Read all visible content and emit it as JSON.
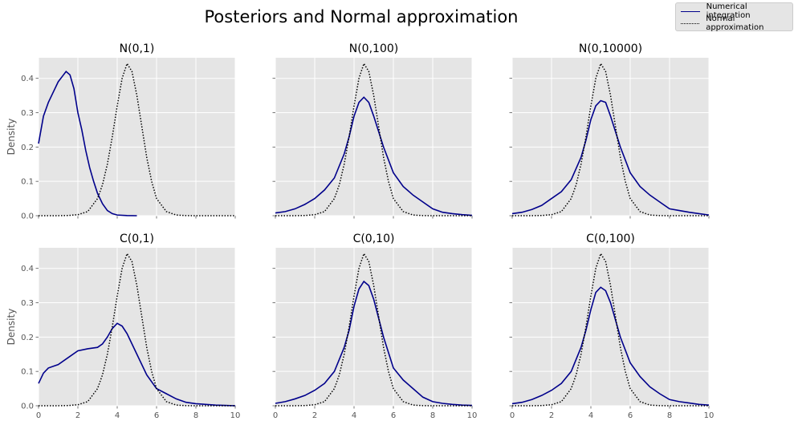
{
  "suptitle": "Posteriors and Normal approximation",
  "legend": {
    "items": [
      {
        "label": "Numerical integration",
        "style": "solid",
        "color": "#00008b"
      },
      {
        "label": "Normal approximation",
        "style": "dotted",
        "color": "#000000"
      }
    ]
  },
  "colors": {
    "panel_bg": "#e5e5e5",
    "grid": "#ffffff",
    "numerical": "#00008b",
    "normal": "#000000"
  },
  "chart_data": [
    {
      "type": "line",
      "title": "N(0,1)",
      "xlabel": "",
      "ylabel": "Density",
      "xlim": [
        0,
        10
      ],
      "ylim": [
        0,
        0.46
      ],
      "xticks": [
        "0",
        "2",
        "4",
        "6",
        "8",
        "10"
      ],
      "yticks": [
        "0.0",
        "0.1",
        "0.2",
        "0.3",
        "0.4"
      ],
      "grid": true,
      "series": [
        {
          "name": "Numerical integration",
          "x": [
            0,
            0.25,
            0.5,
            0.75,
            1.0,
            1.2,
            1.4,
            1.6,
            1.8,
            2.0,
            2.2,
            2.4,
            2.6,
            2.8,
            3.0,
            3.25,
            3.5,
            3.75,
            4.0,
            4.5,
            5.0
          ],
          "y": [
            0.21,
            0.29,
            0.33,
            0.36,
            0.39,
            0.405,
            0.42,
            0.41,
            0.37,
            0.3,
            0.25,
            0.19,
            0.14,
            0.1,
            0.065,
            0.035,
            0.015,
            0.006,
            0.002,
            0.0005,
            0.0
          ]
        },
        {
          "name": "Normal approximation",
          "x": [
            0,
            0.5,
            1,
            1.5,
            2,
            2.5,
            3,
            3.25,
            3.5,
            3.75,
            4,
            4.25,
            4.5,
            4.75,
            5,
            5.25,
            5.5,
            5.75,
            6,
            6.5,
            7,
            7.5,
            8,
            8.5,
            9,
            9.5,
            10
          ],
          "y": [
            0,
            0,
            0.0001,
            0.0006,
            0.003,
            0.012,
            0.05,
            0.09,
            0.15,
            0.23,
            0.32,
            0.4,
            0.443,
            0.42,
            0.35,
            0.26,
            0.17,
            0.1,
            0.05,
            0.012,
            0.002,
            0.0003,
            0,
            0,
            0,
            0,
            0
          ]
        }
      ]
    },
    {
      "type": "line",
      "title": "N(0,100)",
      "xlabel": "",
      "ylabel": "",
      "xlim": [
        0,
        10
      ],
      "ylim": [
        0,
        0.46
      ],
      "xticks": [
        "0",
        "2",
        "4",
        "6",
        "8",
        "10"
      ],
      "yticks": [
        "0.0",
        "0.1",
        "0.2",
        "0.3",
        "0.4"
      ],
      "grid": true,
      "series": [
        {
          "name": "Numerical integration",
          "x": [
            0,
            0.5,
            1,
            1.5,
            2,
            2.5,
            3,
            3.5,
            3.75,
            4,
            4.25,
            4.5,
            4.75,
            5,
            5.5,
            6,
            6.5,
            7,
            7.5,
            8,
            8.5,
            9,
            9.5,
            10
          ],
          "y": [
            0.008,
            0.012,
            0.02,
            0.033,
            0.05,
            0.075,
            0.11,
            0.18,
            0.23,
            0.29,
            0.33,
            0.345,
            0.33,
            0.29,
            0.2,
            0.125,
            0.085,
            0.06,
            0.04,
            0.02,
            0.01,
            0.006,
            0.003,
            0.001
          ]
        },
        {
          "name": "Normal approximation",
          "x": [
            0,
            0.5,
            1,
            1.5,
            2,
            2.5,
            3,
            3.25,
            3.5,
            3.75,
            4,
            4.25,
            4.5,
            4.75,
            5,
            5.25,
            5.5,
            5.75,
            6,
            6.5,
            7,
            7.5,
            8,
            8.5,
            9,
            9.5,
            10
          ],
          "y": [
            0,
            0,
            0.0001,
            0.0006,
            0.003,
            0.012,
            0.05,
            0.09,
            0.15,
            0.23,
            0.32,
            0.4,
            0.443,
            0.42,
            0.35,
            0.26,
            0.17,
            0.1,
            0.05,
            0.012,
            0.002,
            0.0003,
            0,
            0,
            0,
            0,
            0
          ]
        }
      ]
    },
    {
      "type": "line",
      "title": "N(0,10000)",
      "xlabel": "",
      "ylabel": "",
      "xlim": [
        0,
        10
      ],
      "ylim": [
        0,
        0.46
      ],
      "xticks": [
        "0",
        "2",
        "4",
        "6",
        "8",
        "10"
      ],
      "yticks": [
        "0.0",
        "0.1",
        "0.2",
        "0.3",
        "0.4"
      ],
      "grid": true,
      "series": [
        {
          "name": "Numerical integration",
          "x": [
            0,
            0.5,
            1,
            1.5,
            2,
            2.5,
            3,
            3.5,
            3.75,
            4,
            4.25,
            4.5,
            4.75,
            5,
            5.5,
            6,
            6.5,
            7,
            7.5,
            8,
            8.5,
            9,
            9.5,
            10
          ],
          "y": [
            0.006,
            0.01,
            0.018,
            0.03,
            0.05,
            0.07,
            0.105,
            0.17,
            0.22,
            0.28,
            0.32,
            0.335,
            0.33,
            0.29,
            0.2,
            0.125,
            0.085,
            0.06,
            0.04,
            0.02,
            0.015,
            0.01,
            0.006,
            0.002
          ]
        },
        {
          "name": "Normal approximation",
          "x": [
            0,
            0.5,
            1,
            1.5,
            2,
            2.5,
            3,
            3.25,
            3.5,
            3.75,
            4,
            4.25,
            4.5,
            4.75,
            5,
            5.25,
            5.5,
            5.75,
            6,
            6.5,
            7,
            7.5,
            8,
            8.5,
            9,
            9.5,
            10
          ],
          "y": [
            0,
            0,
            0.0001,
            0.0006,
            0.003,
            0.012,
            0.05,
            0.09,
            0.15,
            0.23,
            0.32,
            0.4,
            0.443,
            0.42,
            0.35,
            0.26,
            0.17,
            0.1,
            0.05,
            0.012,
            0.002,
            0.0003,
            0,
            0,
            0,
            0,
            0
          ]
        }
      ]
    },
    {
      "type": "line",
      "title": "C(0,1)",
      "xlabel": "",
      "ylabel": "Density",
      "xlim": [
        0,
        10
      ],
      "ylim": [
        0,
        0.46
      ],
      "xticks": [
        "0",
        "2",
        "4",
        "6",
        "8",
        "10"
      ],
      "yticks": [
        "0.0",
        "0.1",
        "0.2",
        "0.3",
        "0.4"
      ],
      "grid": true,
      "series": [
        {
          "name": "Numerical integration",
          "x": [
            0,
            0.25,
            0.5,
            0.75,
            1.0,
            1.5,
            2,
            2.5,
            3,
            3.25,
            3.5,
            3.75,
            4,
            4.25,
            4.5,
            5,
            5.5,
            6,
            6.5,
            7,
            7.5,
            8,
            8.5,
            9,
            9.5,
            10
          ],
          "y": [
            0.065,
            0.095,
            0.11,
            0.115,
            0.12,
            0.14,
            0.16,
            0.166,
            0.17,
            0.18,
            0.2,
            0.225,
            0.24,
            0.232,
            0.21,
            0.15,
            0.09,
            0.05,
            0.035,
            0.02,
            0.01,
            0.006,
            0.004,
            0.002,
            0.001,
            0.0
          ]
        },
        {
          "name": "Normal approximation",
          "x": [
            0,
            0.5,
            1,
            1.5,
            2,
            2.5,
            3,
            3.25,
            3.5,
            3.75,
            4,
            4.25,
            4.5,
            4.75,
            5,
            5.25,
            5.5,
            5.75,
            6,
            6.5,
            7,
            7.5,
            8,
            8.5,
            9,
            9.5,
            10
          ],
          "y": [
            0,
            0,
            0.0001,
            0.0006,
            0.003,
            0.012,
            0.05,
            0.09,
            0.15,
            0.23,
            0.32,
            0.4,
            0.443,
            0.42,
            0.35,
            0.26,
            0.17,
            0.1,
            0.05,
            0.012,
            0.002,
            0.0003,
            0,
            0,
            0,
            0,
            0
          ]
        }
      ]
    },
    {
      "type": "line",
      "title": "C(0,10)",
      "xlabel": "",
      "ylabel": "",
      "xlim": [
        0,
        10
      ],
      "ylim": [
        0,
        0.46
      ],
      "xticks": [
        "0",
        "2",
        "4",
        "6",
        "8",
        "10"
      ],
      "yticks": [
        "0.0",
        "0.1",
        "0.2",
        "0.3",
        "0.4"
      ],
      "grid": true,
      "series": [
        {
          "name": "Numerical integration",
          "x": [
            0,
            0.5,
            1,
            1.5,
            2,
            2.5,
            3,
            3.5,
            3.75,
            4,
            4.25,
            4.5,
            4.75,
            5,
            5.5,
            6,
            6.5,
            7,
            7.5,
            8,
            8.5,
            9,
            9.5,
            10
          ],
          "y": [
            0.007,
            0.012,
            0.02,
            0.03,
            0.045,
            0.065,
            0.1,
            0.17,
            0.22,
            0.29,
            0.34,
            0.362,
            0.35,
            0.31,
            0.2,
            0.11,
            0.075,
            0.05,
            0.025,
            0.012,
            0.007,
            0.004,
            0.002,
            0.001
          ]
        },
        {
          "name": "Normal approximation",
          "x": [
            0,
            0.5,
            1,
            1.5,
            2,
            2.5,
            3,
            3.25,
            3.5,
            3.75,
            4,
            4.25,
            4.5,
            4.75,
            5,
            5.25,
            5.5,
            5.75,
            6,
            6.5,
            7,
            7.5,
            8,
            8.5,
            9,
            9.5,
            10
          ],
          "y": [
            0,
            0,
            0.0001,
            0.0006,
            0.003,
            0.012,
            0.05,
            0.09,
            0.15,
            0.23,
            0.32,
            0.4,
            0.443,
            0.42,
            0.35,
            0.26,
            0.17,
            0.1,
            0.05,
            0.012,
            0.002,
            0.0003,
            0,
            0,
            0,
            0,
            0
          ]
        }
      ]
    },
    {
      "type": "line",
      "title": "C(0,100)",
      "xlabel": "",
      "ylabel": "",
      "xlim": [
        0,
        10
      ],
      "ylim": [
        0,
        0.46
      ],
      "xticks": [
        "0",
        "2",
        "4",
        "6",
        "8",
        "10"
      ],
      "yticks": [
        "0.0",
        "0.1",
        "0.2",
        "0.3",
        "0.4"
      ],
      "grid": true,
      "series": [
        {
          "name": "Numerical integration",
          "x": [
            0,
            0.5,
            1,
            1.5,
            2,
            2.5,
            3,
            3.5,
            3.75,
            4,
            4.25,
            4.5,
            4.75,
            5,
            5.5,
            6,
            6.5,
            7,
            7.5,
            8,
            8.5,
            9,
            9.5,
            10
          ],
          "y": [
            0.006,
            0.01,
            0.018,
            0.03,
            0.045,
            0.065,
            0.1,
            0.17,
            0.22,
            0.28,
            0.33,
            0.345,
            0.335,
            0.3,
            0.2,
            0.125,
            0.085,
            0.055,
            0.035,
            0.018,
            0.012,
            0.008,
            0.004,
            0.002
          ]
        },
        {
          "name": "Normal approximation",
          "x": [
            0,
            0.5,
            1,
            1.5,
            2,
            2.5,
            3,
            3.25,
            3.5,
            3.75,
            4,
            4.25,
            4.5,
            4.75,
            5,
            5.25,
            5.5,
            5.75,
            6,
            6.5,
            7,
            7.5,
            8,
            8.5,
            9,
            9.5,
            10
          ],
          "y": [
            0,
            0,
            0.0001,
            0.0006,
            0.003,
            0.012,
            0.05,
            0.09,
            0.15,
            0.23,
            0.32,
            0.4,
            0.443,
            0.42,
            0.35,
            0.26,
            0.17,
            0.1,
            0.05,
            0.012,
            0.002,
            0.0003,
            0,
            0,
            0,
            0,
            0
          ]
        }
      ]
    }
  ]
}
